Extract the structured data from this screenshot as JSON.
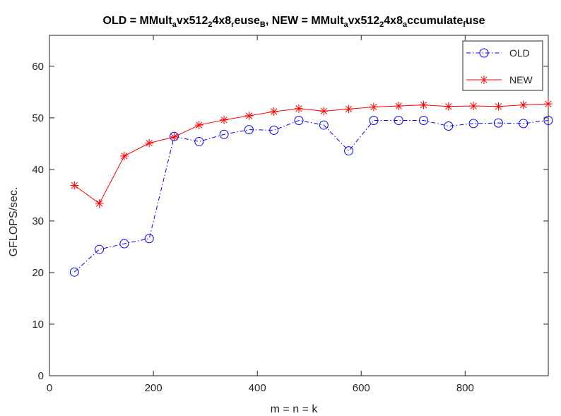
{
  "chart_data": {
    "type": "line",
    "title_parts": [
      {
        "text": "OLD = MMult",
        "style": "normal"
      },
      {
        "text": "a",
        "style": "sub"
      },
      {
        "text": "vx512",
        "style": "normal"
      },
      {
        "text": "2",
        "style": "sub"
      },
      {
        "text": "4x8",
        "style": "normal"
      },
      {
        "text": "r",
        "style": "sub"
      },
      {
        "text": "euse",
        "style": "normal"
      },
      {
        "text": "B",
        "style": "sub"
      },
      {
        "text": ", NEW = MMult",
        "style": "normal"
      },
      {
        "text": "a",
        "style": "sub"
      },
      {
        "text": "vx512",
        "style": "normal"
      },
      {
        "text": "2",
        "style": "sub"
      },
      {
        "text": "4x8",
        "style": "normal"
      },
      {
        "text": "a",
        "style": "sub"
      },
      {
        "text": "ccumulate",
        "style": "normal"
      },
      {
        "text": "f",
        "style": "sub"
      },
      {
        "text": "use",
        "style": "normal"
      }
    ],
    "xlabel": "m = n = k",
    "ylabel": "GFLOPS/sec.",
    "xlim": [
      0,
      960
    ],
    "ylim": [
      0,
      66
    ],
    "xticks": [
      0,
      200,
      400,
      600,
      800
    ],
    "yticks": [
      0,
      10,
      20,
      30,
      40,
      50,
      60
    ],
    "grid": false,
    "legend_position": "top-right",
    "x": [
      48,
      96,
      144,
      192,
      240,
      288,
      336,
      384,
      432,
      480,
      528,
      576,
      624,
      672,
      720,
      768,
      816,
      864,
      912,
      960
    ],
    "series": [
      {
        "name": "OLD",
        "color": "#0000ff",
        "marker": "circle",
        "line": "dash-dot",
        "values": [
          20.1,
          24.5,
          25.6,
          26.6,
          46.4,
          45.4,
          46.8,
          47.7,
          47.6,
          49.5,
          48.6,
          43.6,
          49.5,
          49.5,
          49.5,
          48.4,
          48.9,
          49.0,
          48.9,
          49.5
        ]
      },
      {
        "name": "NEW",
        "color": "#ff0000",
        "marker": "star",
        "line": "solid",
        "values": [
          36.9,
          33.4,
          42.6,
          45.1,
          46.3,
          48.6,
          49.6,
          50.4,
          51.2,
          51.8,
          51.3,
          51.7,
          52.1,
          52.3,
          52.5,
          52.2,
          52.3,
          52.2,
          52.5,
          52.7
        ]
      }
    ]
  }
}
